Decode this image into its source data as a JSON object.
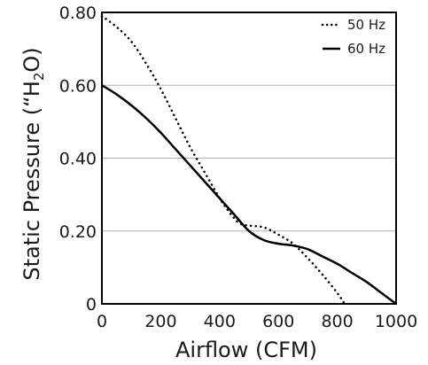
{
  "chart_data": {
    "type": "line",
    "title": "",
    "xlabel": "Airflow (CFM)",
    "ylabel_parts": {
      "before": "Static Pressure (“H",
      "sub": "2",
      "after": "O)"
    },
    "xlim": [
      0,
      1000
    ],
    "ylim": [
      0,
      0.8
    ],
    "x_ticks": [
      0,
      200,
      400,
      600,
      800,
      1000
    ],
    "x_tick_labels": [
      "0",
      "200",
      "400",
      "600",
      "800",
      "1000"
    ],
    "y_ticks": [
      0,
      0.2,
      0.4,
      0.6,
      0.8
    ],
    "y_tick_labels": [
      "0",
      "0.20",
      "0.40",
      "0.60",
      "0.80"
    ],
    "grid": "horizontal",
    "legend_position": "top-right",
    "series": [
      {
        "name": "50 Hz",
        "style": "dotted",
        "x": [
          0,
          50,
          100,
          150,
          200,
          250,
          300,
          350,
          400,
          430,
          450,
          470,
          500,
          550,
          600,
          650,
          700,
          750,
          800,
          825
        ],
        "y": [
          0.79,
          0.76,
          0.72,
          0.66,
          0.59,
          0.51,
          0.43,
          0.36,
          0.29,
          0.255,
          0.235,
          0.22,
          0.215,
          0.21,
          0.19,
          0.165,
          0.125,
          0.08,
          0.03,
          0.0
        ]
      },
      {
        "name": "60 Hz",
        "style": "solid",
        "x": [
          0,
          50,
          100,
          150,
          200,
          250,
          300,
          350,
          400,
          450,
          500,
          550,
          600,
          650,
          700,
          750,
          800,
          850,
          900,
          950,
          1000
        ],
        "y": [
          0.6,
          0.575,
          0.545,
          0.51,
          0.47,
          0.425,
          0.38,
          0.335,
          0.29,
          0.245,
          0.2,
          0.175,
          0.165,
          0.16,
          0.15,
          0.13,
          0.11,
          0.085,
          0.06,
          0.03,
          0.0
        ]
      }
    ],
    "colors": {
      "line": "#000000",
      "grid": "#b0b0b0",
      "axis": "#000000"
    }
  }
}
